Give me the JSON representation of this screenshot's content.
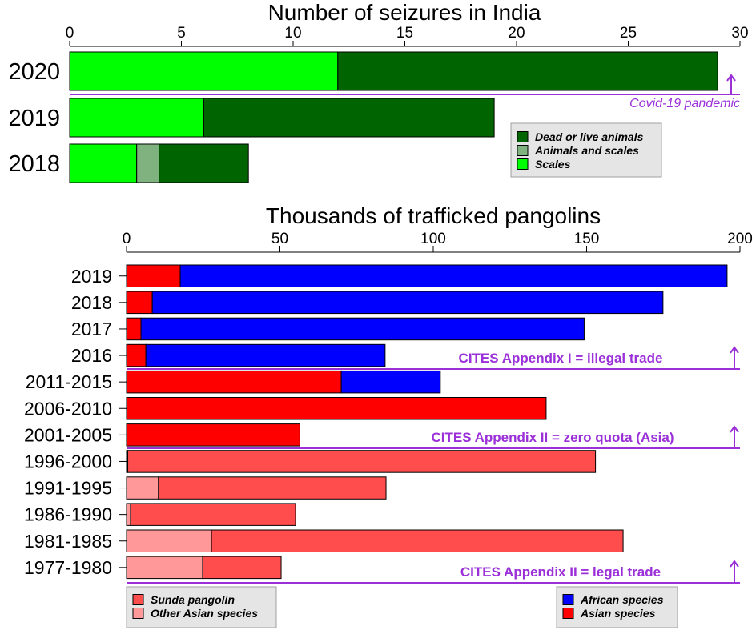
{
  "chart_data": [
    {
      "type": "bar",
      "orientation": "horizontal",
      "stacked": true,
      "title": "Number of seizures in India",
      "categories": [
        "2020",
        "2019",
        "2018"
      ],
      "xlim": [
        0,
        30
      ],
      "xticks": [
        "0",
        "5",
        "10",
        "15",
        "20",
        "25",
        "30"
      ],
      "series": [
        {
          "name": "Scales",
          "color": "#00ff00",
          "values": [
            12,
            6,
            3
          ]
        },
        {
          "name": "Animals and scales",
          "color": "#7fb27f",
          "values": [
            0,
            0,
            1
          ]
        },
        {
          "name": "Dead or live animals",
          "color": "#006400",
          "values": [
            17,
            13,
            4
          ]
        }
      ],
      "legend": {
        "position": "right",
        "entries": [
          "Dead or live animals",
          "Animals and scales",
          "Scales"
        ]
      },
      "annotations": [
        {
          "text": "Covid-19 pandemic",
          "after_category": "2020"
        }
      ]
    },
    {
      "type": "bar",
      "orientation": "horizontal",
      "stacked": true,
      "title": "Thousands of trafficked pangolins",
      "categories": [
        "2019",
        "2018",
        "2017",
        "2016",
        "2011-2015",
        "2006-2010",
        "2001-2005",
        "1996-2000",
        "1991-1995",
        "1986-1990",
        "1981-1985",
        "1977-1980"
      ],
      "xlim": [
        0,
        200
      ],
      "xticks": [
        "0",
        "50",
        "100",
        "150",
        "200"
      ],
      "series": [
        {
          "name": "Other Asian species",
          "color": "#ff9999",
          "values": [
            0,
            0,
            0,
            0,
            0,
            0,
            0,
            0.4,
            10.4,
            1.3,
            27.7,
            24.8
          ]
        },
        {
          "name": "Sunda pangolin",
          "color": "#ff4c4c",
          "values": [
            0,
            0,
            0,
            0,
            0,
            0,
            0,
            152.5,
            74.2,
            53.8,
            134.2,
            25.6
          ]
        },
        {
          "name": "Asian species",
          "color": "#ff0000",
          "values": [
            17.5,
            8.4,
            4.7,
            6.3,
            70,
            136.8,
            56.5,
            0,
            0,
            0,
            0,
            0
          ]
        },
        {
          "name": "African species",
          "color": "#0000ff",
          "values": [
            178.3,
            166.5,
            144.5,
            78,
            32.3,
            0,
            0,
            0,
            0,
            0,
            0,
            0
          ]
        }
      ],
      "legends": [
        {
          "position": "bottom-left",
          "entries": [
            "Sunda pangolin",
            "Other Asian species"
          ]
        },
        {
          "position": "bottom-right",
          "entries": [
            "African species",
            "Asian species"
          ]
        }
      ],
      "annotations": [
        {
          "text": "CITES Appendix I = illegal trade",
          "after_category": "2016"
        },
        {
          "text": "CITES Appendix II = zero quota (Asia)",
          "after_category": "2001-2005"
        },
        {
          "text": "CITES Appendix II = legal trade",
          "after_category": "1977-1980"
        }
      ]
    }
  ],
  "annotation_color": "#9b30d9"
}
